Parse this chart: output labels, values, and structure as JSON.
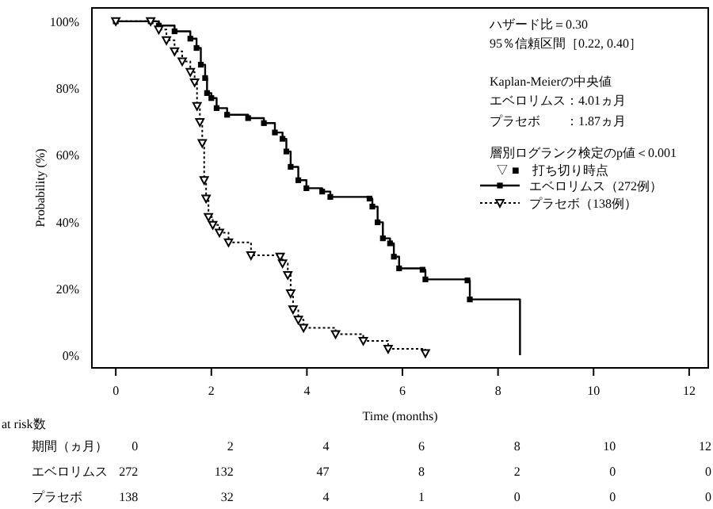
{
  "chart_data": {
    "type": "step",
    "ylabel": "Probability (%)",
    "xlabel": "Time (months)",
    "xlim": [
      -0.5,
      12.4
    ],
    "ylim": [
      -3.8,
      104
    ],
    "xticks": [
      0,
      2,
      4,
      6,
      8,
      10,
      12
    ],
    "yticks": [
      {
        "value": 0,
        "label": "0%"
      },
      {
        "value": 20,
        "label": "20%"
      },
      {
        "value": 40,
        "label": "40%"
      },
      {
        "value": 60,
        "label": "60%"
      },
      {
        "value": 80,
        "label": "80%"
      },
      {
        "value": 100,
        "label": "100%"
      }
    ],
    "tick_labels": true,
    "grid": false,
    "legend": "right",
    "series": [
      {
        "name": "エベロリムス（272例）",
        "color": "#000000",
        "line_style": "solid",
        "marker": "square",
        "x": [
          0,
          0.73,
          0.9,
          1.23,
          1.56,
          1.69,
          1.78,
          1.87,
          1.91,
          2.0,
          2.11,
          2.33,
          2.77,
          3.1,
          3.33,
          3.49,
          3.57,
          3.66,
          3.82,
          3.99,
          4.32,
          4.49,
          5.31,
          5.37,
          5.48,
          5.59,
          5.74,
          5.82,
          5.93,
          6.42,
          6.48,
          7.36,
          7.41,
          8.46
        ],
        "values": [
          100,
          100,
          98.7,
          97,
          94.8,
          92,
          87,
          83,
          78.5,
          77,
          74,
          72,
          71,
          69.5,
          66.7,
          64.8,
          61,
          56.4,
          52.4,
          50,
          49,
          47.4,
          46.9,
          44.5,
          39.8,
          35,
          33.5,
          29.5,
          26,
          25.6,
          22.7,
          22.4,
          16.7,
          0
        ]
      },
      {
        "name": "プラセボ（138例）",
        "color": "#000000",
        "line_style": "dotted",
        "marker": "triangle",
        "x": [
          0,
          0.73,
          0.9,
          1.06,
          1.23,
          1.39,
          1.56,
          1.65,
          1.7,
          1.76,
          1.81,
          1.85,
          1.89,
          1.94,
          2.03,
          2.17,
          2.36,
          2.83,
          3.44,
          3.49,
          3.6,
          3.66,
          3.71,
          3.82,
          3.93,
          4.6,
          5.18,
          5.7,
          6.48
        ],
        "values": [
          100,
          100,
          97.5,
          94.3,
          91,
          88,
          84.8,
          81.7,
          74.6,
          69.8,
          63.5,
          52.4,
          46.9,
          41.4,
          39,
          36.7,
          33.8,
          29.9,
          29.5,
          27.5,
          24,
          18.5,
          13.7,
          10.6,
          8.2,
          6.3,
          4.3,
          1.9,
          0.6
        ]
      }
    ],
    "annotations": [
      "ハザード比＝0.30",
      "95％信頼区間［0.22, 0.40］",
      "Kaplan-Meierの中央値",
      "エベロリムス：4.01ヵ月",
      "プラセボ　　：1.87ヵ月",
      "層別ログランク検定のp値＜0.001",
      "▽ ■　打ち切り時点",
      "at risk数",
      "期間（ヵ月）",
      "0",
      "2",
      "4",
      "6",
      "8",
      "10",
      "12",
      "エベロリムス",
      "272",
      "132",
      "47",
      "8",
      "2",
      "0",
      "0",
      "プラセボ",
      "138",
      "32",
      "4",
      "1",
      "0",
      "0",
      "0"
    ]
  }
}
